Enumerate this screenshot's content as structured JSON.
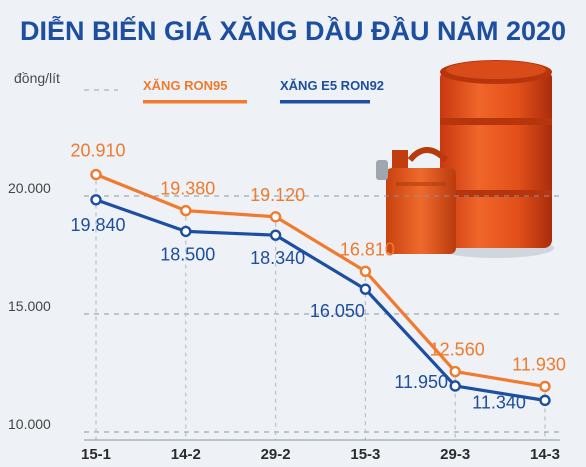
{
  "chart_data": {
    "type": "line",
    "title": "DIỄN BIẾN GIÁ XĂNG DẦU ĐẦU NĂM 2020",
    "ylabel": "đồng/lít",
    "xlabel": "",
    "categories": [
      "15-1",
      "14-2",
      "29-2",
      "15-3",
      "29-3",
      "14-3"
    ],
    "ylim": [
      10000,
      20000
    ],
    "yticks": [
      {
        "value": 20000,
        "label": "20.000"
      },
      {
        "value": 15000,
        "label": "15.000"
      },
      {
        "value": 10000,
        "label": "10.000"
      }
    ],
    "legend_position": "top-center",
    "grid": "dashed-horizontal",
    "series": [
      {
        "name": "XĂNG RON95",
        "color": "#f07a2e",
        "values": [
          20910,
          19380,
          19120,
          16810,
          12560,
          11930
        ],
        "labels": [
          "20.910",
          "19.380",
          "19.120",
          "16.810",
          "12.560",
          "11.930"
        ]
      },
      {
        "name": "XĂNG E5 RON92",
        "color": "#1d4ea0",
        "values": [
          19840,
          18500,
          18340,
          16050,
          11950,
          11340
        ],
        "labels": [
          "19.840",
          "18.500",
          "18.340",
          "16.050",
          "11.950",
          "11.340"
        ]
      }
    ]
  },
  "colors": {
    "title": "#1d4ea0",
    "background": "#eef2f6",
    "barrel": "#e8551f"
  },
  "icons": [
    "oil-barrel-icon",
    "jerrycan-icon"
  ]
}
